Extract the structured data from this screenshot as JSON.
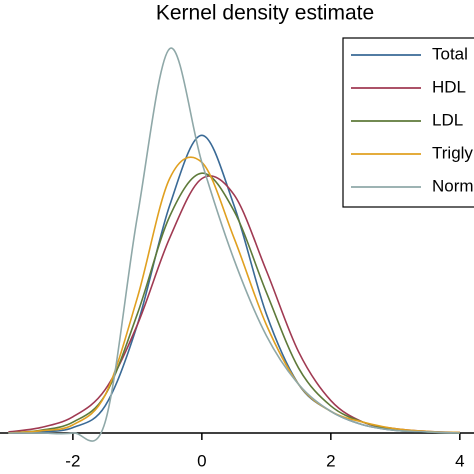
{
  "chart_data": {
    "type": "line",
    "title": "Kernel density estimate",
    "x": [
      -3,
      -2.5,
      -2,
      -1.5,
      -1,
      -0.5,
      0,
      0.5,
      1,
      1.5,
      2,
      2.5,
      3,
      3.5,
      4
    ],
    "series": [
      {
        "name": "Total",
        "color": "#3a6a96",
        "values": [
          0,
          0.002,
          0.01,
          0.05,
          0.2,
          0.42,
          0.55,
          0.42,
          0.22,
          0.09,
          0.04,
          0.015,
          0.005,
          0.002,
          0
        ]
      },
      {
        "name": "HDL",
        "color": "#a03a52",
        "values": [
          0.002,
          0.01,
          0.03,
          0.08,
          0.2,
          0.36,
          0.47,
          0.44,
          0.3,
          0.15,
          0.06,
          0.02,
          0.008,
          0.003,
          0.001
        ]
      },
      {
        "name": "LDL",
        "color": "#5e7a3a",
        "values": [
          0,
          0.005,
          0.02,
          0.07,
          0.22,
          0.4,
          0.48,
          0.41,
          0.26,
          0.12,
          0.05,
          0.02,
          0.006,
          0.002,
          0
        ]
      },
      {
        "name": "Trigly",
        "color": "#e0a020",
        "values": [
          0,
          0.004,
          0.015,
          0.07,
          0.25,
          0.47,
          0.5,
          0.36,
          0.2,
          0.09,
          0.04,
          0.02,
          0.008,
          0.003,
          0.001
        ]
      },
      {
        "name": "Norm",
        "color": "#8fa8a8",
        "values": [
          0,
          0,
          0,
          0.02,
          0.4,
          0.71,
          0.5,
          0.32,
          0.18,
          0.09,
          0.04,
          0.015,
          0.005,
          0.002,
          0
        ]
      }
    ],
    "xlim": [
      -3.13,
      4.22
    ],
    "xticks": [
      -2,
      0,
      2,
      4
    ],
    "ylim": [
      0,
      0.8
    ],
    "legend": "top right"
  }
}
